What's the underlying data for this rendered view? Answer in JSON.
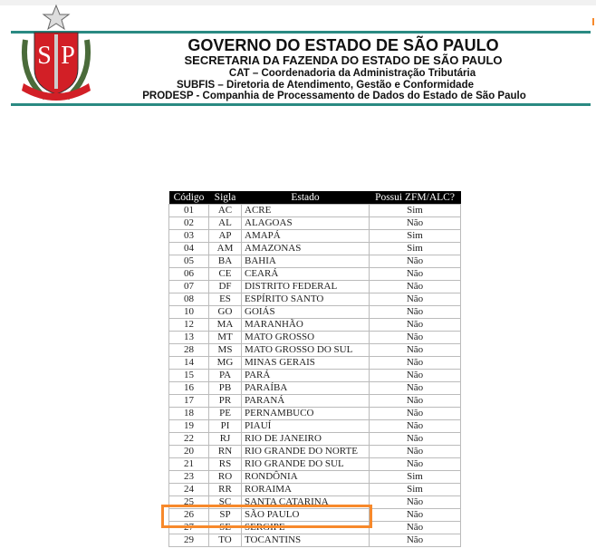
{
  "header": {
    "title": "GOVERNO DO ESTADO DE SÃO PAULO",
    "line1": "SECRETARIA DA FAZENDA DO ESTADO DE SÃO PAULO",
    "line2": "CAT – Coordenadoria da Administração Tributária",
    "line3": "SUBFIS – Diretoria de Atendimento, Gestão e Conformidade",
    "line4": "PRODESP - Companhia de Processamento de Dados do Estado de São Paulo",
    "logo_text": "SP",
    "accent": "#2a8a82"
  },
  "table": {
    "columns": [
      "Código",
      "Sigla",
      "Estado",
      "Possui ZFM/ALC?"
    ],
    "rows": [
      [
        "01",
        "AC",
        "ACRE",
        "Sim"
      ],
      [
        "02",
        "AL",
        "ALAGOAS",
        "Não"
      ],
      [
        "03",
        "AP",
        "AMAPÁ",
        "Sim"
      ],
      [
        "04",
        "AM",
        "AMAZONAS",
        "Sim"
      ],
      [
        "05",
        "BA",
        "BAHIA",
        "Não"
      ],
      [
        "06",
        "CE",
        "CEARÁ",
        "Não"
      ],
      [
        "07",
        "DF",
        "DISTRITO FEDERAL",
        "Não"
      ],
      [
        "08",
        "ES",
        "ESPÍRITO SANTO",
        "Não"
      ],
      [
        "10",
        "GO",
        "GOIÁS",
        "Não"
      ],
      [
        "12",
        "MA",
        "MARANHÃO",
        "Não"
      ],
      [
        "13",
        "MT",
        "MATO GROSSO",
        "Não"
      ],
      [
        "28",
        "MS",
        "MATO GROSSO DO SUL",
        "Não"
      ],
      [
        "14",
        "MG",
        "MINAS GERAIS",
        "Não"
      ],
      [
        "15",
        "PA",
        "PARÁ",
        "Não"
      ],
      [
        "16",
        "PB",
        "PARAÍBA",
        "Não"
      ],
      [
        "17",
        "PR",
        "PARANÁ",
        "Não"
      ],
      [
        "18",
        "PE",
        "PERNAMBUCO",
        "Não"
      ],
      [
        "19",
        "PI",
        "PIAUÍ",
        "Não"
      ],
      [
        "22",
        "RJ",
        "RIO DE JANEIRO",
        "Não"
      ],
      [
        "20",
        "RN",
        "RIO GRANDE DO NORTE",
        "Não"
      ],
      [
        "21",
        "RS",
        "RIO GRANDE DO SUL",
        "Não"
      ],
      [
        "23",
        "RO",
        "RONDÔNIA",
        "Sim"
      ],
      [
        "24",
        "RR",
        "RORAIMA",
        "Sim"
      ],
      [
        "25",
        "SC",
        "SANTA CATARINA",
        "Não"
      ],
      [
        "26",
        "SP",
        "SÃO PAULO",
        "Não"
      ],
      [
        "27",
        "SE",
        "SERGIPE",
        "Não"
      ],
      [
        "29",
        "TO",
        "TOCANTINS",
        "Não"
      ]
    ],
    "highlighted_row": "SP",
    "highlight_color": "#f7892b"
  }
}
